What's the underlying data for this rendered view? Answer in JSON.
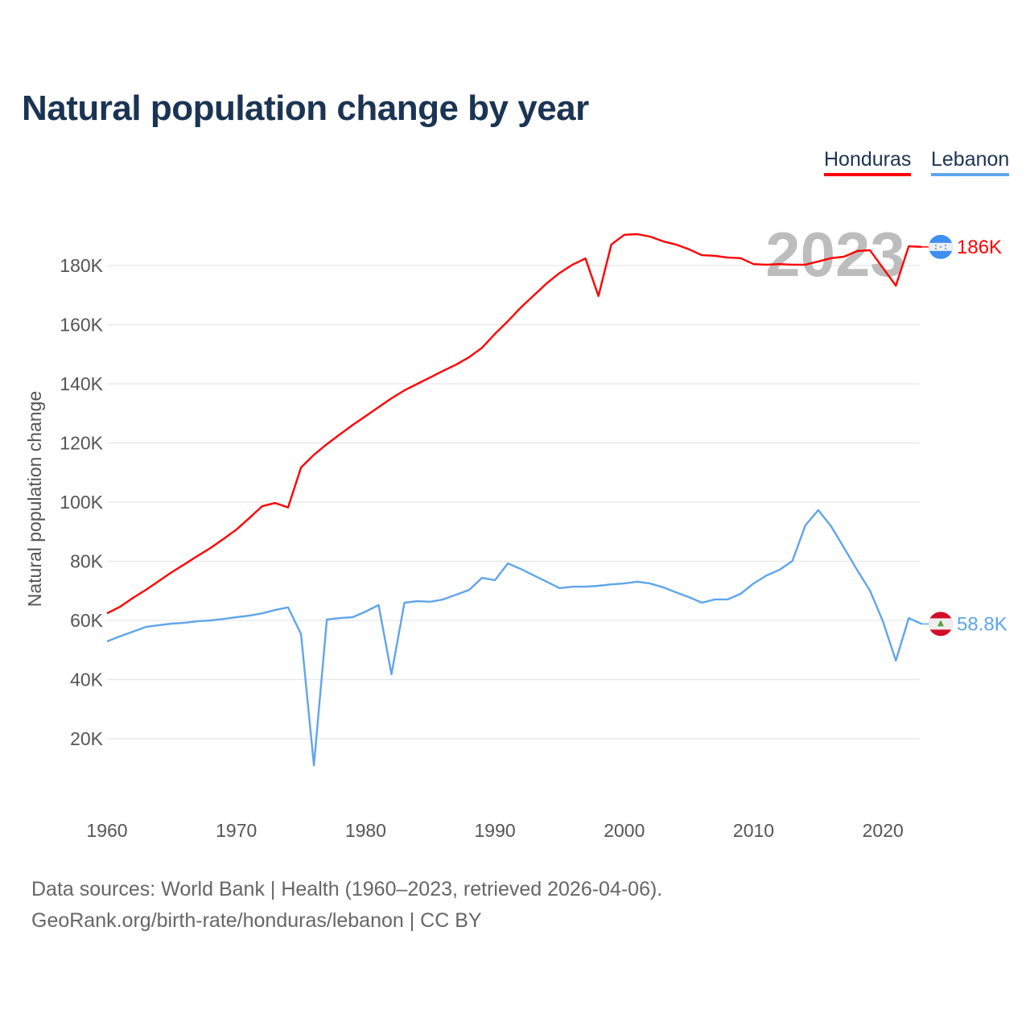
{
  "title": "Natural population change by year",
  "legend": [
    {
      "name": "Honduras",
      "color": "#ff0000"
    },
    {
      "name": "Lebanon",
      "color": "#5fa5ec"
    }
  ],
  "footer": {
    "line1": "Data sources: World Bank | Health (1960–2023, retrieved 2026-04-06).",
    "line2": "GeoRank.org/birth-rate/honduras/lebanon | CC BY"
  },
  "chart_data": {
    "type": "line",
    "title": "Natural population change by year",
    "xlabel": "",
    "ylabel": "Natural population change",
    "xlim": [
      1960,
      2023
    ],
    "ylim": [
      0,
      200000
    ],
    "grid": true,
    "legend_placement": "top-right",
    "year_watermark": "2023",
    "x_ticks": [
      1960,
      1970,
      1980,
      1990,
      2000,
      2010,
      2020
    ],
    "x_tick_labels": [
      "1960",
      "1970",
      "1980",
      "1990",
      "2000",
      "2010",
      "2020"
    ],
    "y_ticks": [
      20000,
      40000,
      60000,
      80000,
      100000,
      120000,
      140000,
      160000,
      180000
    ],
    "y_tick_labels": [
      "20K",
      "40K",
      "60K",
      "80K",
      "100K",
      "120K",
      "140K",
      "160K",
      "180K"
    ],
    "x": [
      1960,
      1961,
      1962,
      1963,
      1964,
      1965,
      1966,
      1967,
      1968,
      1969,
      1970,
      1971,
      1972,
      1973,
      1974,
      1975,
      1976,
      1977,
      1978,
      1979,
      1980,
      1981,
      1982,
      1983,
      1984,
      1985,
      1986,
      1987,
      1988,
      1989,
      1990,
      1991,
      1992,
      1993,
      1994,
      1995,
      1996,
      1997,
      1998,
      1999,
      2000,
      2001,
      2002,
      2003,
      2004,
      2005,
      2006,
      2007,
      2008,
      2009,
      2010,
      2011,
      2012,
      2013,
      2014,
      2015,
      2016,
      2017,
      2018,
      2019,
      2020,
      2021,
      2022,
      2023
    ],
    "series": [
      {
        "name": "Honduras",
        "color": "#ff0000",
        "end_label": "186K",
        "flag": "honduras-flag",
        "values": [
          62400,
          64600,
          67600,
          70300,
          73300,
          76300,
          79000,
          81800,
          84500,
          87500,
          90700,
          94600,
          98600,
          99700,
          98200,
          111700,
          116000,
          119600,
          122900,
          126100,
          129100,
          132100,
          135100,
          137800,
          140000,
          142200,
          144400,
          146500,
          149000,
          152200,
          156900,
          161200,
          165800,
          169900,
          174000,
          177500,
          180300,
          182400,
          169700,
          187100,
          190400,
          190600,
          189800,
          188200,
          187100,
          185500,
          183500,
          183300,
          182700,
          182500,
          180500,
          180300,
          180500,
          180300,
          180300,
          181400,
          182500,
          183000,
          184900,
          185200,
          179200,
          173200,
          186500,
          186300
        ]
      },
      {
        "name": "Lebanon",
        "color": "#5fa5ec",
        "end_label": "58.8K",
        "flag": "lebanon-flag",
        "values": [
          52900,
          54600,
          56200,
          57800,
          58400,
          58900,
          59200,
          59700,
          60000,
          60500,
          61100,
          61600,
          62400,
          63500,
          64400,
          55400,
          11000,
          60300,
          60800,
          61100,
          63000,
          65200,
          41800,
          66000,
          66500,
          66300,
          67100,
          68700,
          70300,
          74400,
          73600,
          79300,
          77400,
          75200,
          73100,
          70900,
          71400,
          71400,
          71700,
          72200,
          72500,
          73100,
          72500,
          71200,
          69500,
          67900,
          66000,
          67100,
          67100,
          69000,
          72500,
          75200,
          77100,
          80100,
          92100,
          97300,
          91800,
          84500,
          77100,
          70100,
          59700,
          46400,
          60800,
          58800
        ]
      }
    ]
  }
}
